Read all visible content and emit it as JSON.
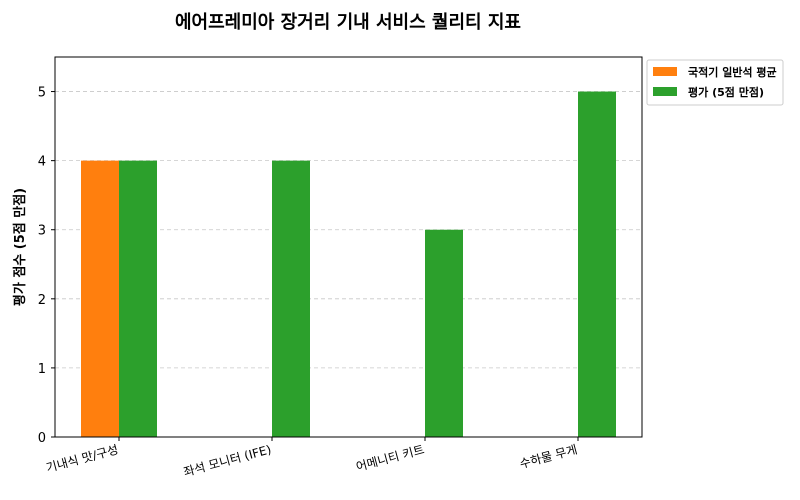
{
  "chart_data": {
    "type": "bar",
    "title": "에어프레미아 장거리 기내 서비스 퀄리티 지표",
    "ylabel": "평가 점수 (5점 만점)",
    "xlabel": "",
    "categories": [
      "기내식 맛/구성",
      "좌석 모니터 (IFE)",
      "어메니티 키트",
      "수하물 무게"
    ],
    "series": [
      {
        "name": "국적기 일반석 평균",
        "values": [
          4,
          null,
          null,
          null
        ],
        "color": "#ff7f0e"
      },
      {
        "name": "평가 (5점 만점)",
        "values": [
          4,
          4,
          3,
          5
        ],
        "color": "#2ca02c"
      }
    ],
    "ylim": [
      0,
      5.5
    ],
    "yticks": [
      0,
      1,
      2,
      3,
      4,
      5
    ],
    "grid": "horizontal dashed",
    "legend_position": "outside top-right"
  }
}
